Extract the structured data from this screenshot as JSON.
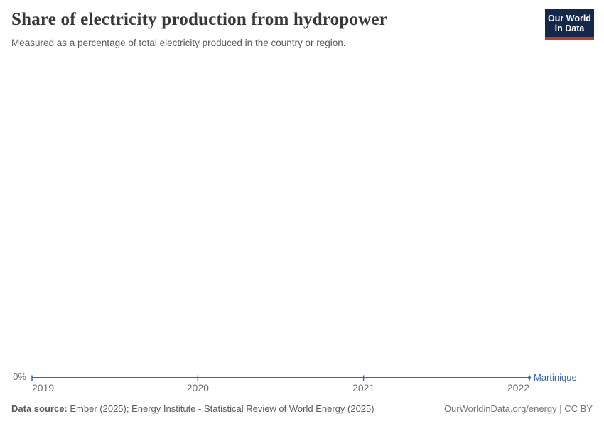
{
  "header": {
    "title": "Share of electricity production from hydropower",
    "subtitle": "Measured as a percentage of total electricity produced in the country or region.",
    "logo": {
      "line1": "Our World",
      "line2": "in Data"
    }
  },
  "chart_data": {
    "type": "line",
    "title": "Share of electricity production from hydropower",
    "subtitle": "Measured as a percentage of total electricity produced in the country or region.",
    "x": [
      2019,
      2020,
      2021,
      2022
    ],
    "x_tick_labels": [
      "2019",
      "2020",
      "2021",
      "2022"
    ],
    "series": [
      {
        "name": "Martinique",
        "color": "#3d64ad",
        "values": [
          0,
          0,
          0,
          0
        ]
      }
    ],
    "y_tick_labels": [
      "0%"
    ],
    "y_unit": "%",
    "y_min": 0,
    "grid": false,
    "legend_position": "end-of-line"
  },
  "footer": {
    "source_label": "Data source:",
    "source_text": "Ember (2025); Energy Institute - Statistical Review of World Energy (2025)",
    "attribution": "OurWorldinData.org/energy | CC BY"
  },
  "colors": {
    "line": "#3d64ad",
    "logo_bg": "#14284b",
    "logo_bar": "#c0392b",
    "title_text": "#383838",
    "muted_text": "#5b5b5b",
    "axis_label": "#6e6e6e"
  }
}
